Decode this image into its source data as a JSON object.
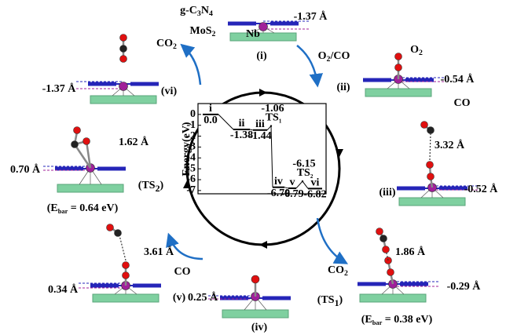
{
  "inset": {
    "ylabel": "Energy(eV)",
    "ylim": [
      -7.3,
      1.0
    ],
    "yticks": [
      0,
      -1,
      -2,
      -3,
      -4,
      -5,
      -6,
      -7
    ],
    "states": [
      {
        "name": "i",
        "energy": 0,
        "label": "0.0"
      },
      {
        "name": "ii",
        "energy": -1.38,
        "label": "-1.38"
      },
      {
        "name": "iii",
        "energy": -1.44,
        "label": "-1.44"
      },
      {
        "name": "iv",
        "energy": -6.7,
        "label": "-6.70"
      },
      {
        "name": "v",
        "energy": -6.79,
        "label": "-6.79"
      },
      {
        "name": "vi",
        "energy": -6.82,
        "label": "-6.82"
      }
    ],
    "transition_states": [
      {
        "name": [
          "TS",
          "1"
        ],
        "energy": -1.06,
        "label": "-1.06"
      },
      {
        "name": [
          "TS",
          "2"
        ],
        "energy": -6.15,
        "label": "-6.15"
      }
    ]
  },
  "labels": {
    "g_c3n4": [
      "g-C",
      "3",
      "N",
      "4"
    ],
    "mos2": [
      "MoS",
      "2"
    ],
    "nb": [
      "Nb"
    ],
    "d_i": [
      "-1.37 Å"
    ],
    "lbl_i": [
      "(i)"
    ],
    "o2co": [
      "O",
      "2",
      "/CO"
    ],
    "lbl_ii": [
      "(ii)"
    ],
    "o2": [
      "O",
      "2"
    ],
    "d_ii": [
      "-0.54 Å"
    ],
    "co_iii": [
      "CO"
    ],
    "dist_iii": [
      "3.32 Å"
    ],
    "d_iii": [
      "-0.52 Å"
    ],
    "lbl_iii": [
      "(iii)"
    ],
    "co2_ts1": [
      "CO",
      "2"
    ],
    "dist_ts1": [
      "1.86 Å"
    ],
    "d_ts1": [
      "-0.29 Å"
    ],
    "lbl_ts1": [
      "(TS",
      "1",
      ")"
    ],
    "ebar_ts1": [
      "(E",
      "bar",
      " = 0.38 eV)"
    ],
    "d_iv": [
      "0.25 Å"
    ],
    "lbl_iv": [
      "(iv)"
    ],
    "co_v": [
      "CO"
    ],
    "dist_v": [
      "3.61 Å"
    ],
    "d_v": [
      "0.34 Å"
    ],
    "lbl_v": [
      "(v)"
    ],
    "dist_ts2": [
      "1.62 Å"
    ],
    "d_ts2": [
      "0.70 Å"
    ],
    "lbl_ts2": [
      "(TS",
      "2",
      ")"
    ],
    "ebar_ts2": [
      "(E",
      "bar",
      " = 0.64 eV)"
    ],
    "d_vi": [
      "-1.37 Å"
    ],
    "lbl_vi": [
      "(vi)"
    ],
    "co2_vi": [
      "CO",
      "2"
    ]
  }
}
